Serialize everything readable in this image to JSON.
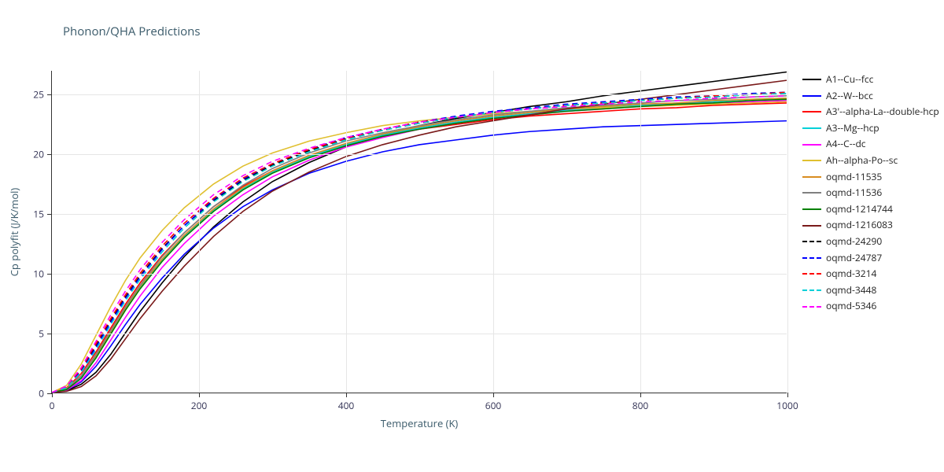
{
  "chart": {
    "type": "line",
    "title": "Phonon/QHA Predictions",
    "title_fontsize": 15,
    "background_color": "#ffffff",
    "grid_color": "#e6e6e6",
    "axis_color": "#333333",
    "label_fontsize": 13,
    "tick_fontsize": 12,
    "xlabel": "Temperature (K)",
    "ylabel": "Cp polyfit (J/K/mol)",
    "xlim": [
      0,
      1000
    ],
    "ylim": [
      0,
      27
    ],
    "xticks": [
      0,
      200,
      400,
      600,
      800,
      1000
    ],
    "yticks": [
      0,
      5,
      10,
      15,
      20,
      25
    ],
    "line_width": 1.6,
    "x_values": [
      0,
      20,
      40,
      60,
      80,
      100,
      120,
      150,
      180,
      220,
      260,
      300,
      350,
      400,
      450,
      500,
      550,
      600,
      650,
      700,
      750,
      800,
      850,
      900,
      950,
      1000
    ],
    "series": [
      {
        "name": "A1--Cu--fcc",
        "color": "#000000",
        "dash": "solid",
        "y": [
          0,
          0.15,
          0.7,
          1.7,
          3.2,
          5.0,
          6.8,
          9.2,
          11.4,
          13.9,
          16.0,
          17.7,
          19.3,
          20.6,
          21.6,
          22.4,
          23.0,
          23.5,
          24.0,
          24.4,
          24.9,
          25.3,
          25.7,
          26.1,
          26.5,
          26.9
        ]
      },
      {
        "name": "A2--W--bcc",
        "color": "#0000ff",
        "dash": "solid",
        "y": [
          0,
          0.2,
          0.9,
          2.2,
          3.9,
          5.7,
          7.4,
          9.6,
          11.6,
          13.8,
          15.6,
          17.0,
          18.4,
          19.4,
          20.2,
          20.8,
          21.2,
          21.6,
          21.9,
          22.1,
          22.3,
          22.4,
          22.5,
          22.6,
          22.7,
          22.8
        ]
      },
      {
        "name": "A3'--alpha-La--double-hcp",
        "color": "#ff0000",
        "dash": "solid",
        "y": [
          0,
          0.4,
          1.6,
          3.4,
          5.4,
          7.4,
          9.2,
          11.5,
          13.4,
          15.6,
          17.3,
          18.6,
          19.9,
          20.8,
          21.5,
          22.1,
          22.5,
          22.9,
          23.2,
          23.4,
          23.6,
          23.8,
          23.9,
          24.1,
          24.2,
          24.3
        ]
      },
      {
        "name": "A3--Mg--hcp",
        "color": "#00d0d8",
        "dash": "solid",
        "y": [
          0,
          0.3,
          1.3,
          3.0,
          5.0,
          7.0,
          8.8,
          11.1,
          13.1,
          15.3,
          17.1,
          18.5,
          19.8,
          20.8,
          21.6,
          22.2,
          22.7,
          23.1,
          23.4,
          23.7,
          23.9,
          24.1,
          24.3,
          24.4,
          24.6,
          24.7
        ]
      },
      {
        "name": "A4--C--dc",
        "color": "#ff00ff",
        "dash": "solid",
        "y": [
          0,
          0.2,
          1.0,
          2.5,
          4.4,
          6.3,
          8.1,
          10.5,
          12.5,
          14.8,
          16.6,
          18.1,
          19.5,
          20.6,
          21.4,
          22.1,
          22.6,
          23.0,
          23.3,
          23.6,
          23.8,
          24.0,
          24.2,
          24.3,
          24.4,
          24.5
        ]
      },
      {
        "name": "Ah--alpha-Po--sc",
        "color": "#e0c030",
        "dash": "solid",
        "y": [
          0,
          0.6,
          2.4,
          4.8,
          7.2,
          9.4,
          11.3,
          13.6,
          15.5,
          17.5,
          19.0,
          20.1,
          21.1,
          21.8,
          22.4,
          22.8,
          23.1,
          23.4,
          23.6,
          23.8,
          23.9,
          24.0,
          24.1,
          24.2,
          24.3,
          24.4
        ]
      },
      {
        "name": "oqmd-11535",
        "color": "#d88c20",
        "dash": "solid",
        "y": [
          0,
          0.35,
          1.4,
          3.1,
          5.1,
          7.1,
          8.9,
          11.2,
          13.2,
          15.4,
          17.2,
          18.6,
          19.9,
          20.9,
          21.7,
          22.3,
          22.8,
          23.2,
          23.5,
          23.8,
          24.0,
          24.2,
          24.3,
          24.5,
          24.6,
          24.7
        ]
      },
      {
        "name": "oqmd-11536",
        "color": "#808080",
        "dash": "solid",
        "y": [
          0,
          0.3,
          1.4,
          3.2,
          5.2,
          7.2,
          9.0,
          11.4,
          13.4,
          15.6,
          17.4,
          18.8,
          20.1,
          21.1,
          21.8,
          22.4,
          22.9,
          23.3,
          23.6,
          23.9,
          24.1,
          24.3,
          24.5,
          24.6,
          24.8,
          24.9
        ]
      },
      {
        "name": "oqmd-1214744",
        "color": "#008000",
        "dash": "solid",
        "y": [
          0,
          0.25,
          1.2,
          2.9,
          4.9,
          6.9,
          8.7,
          11.0,
          13.0,
          15.2,
          17.0,
          18.4,
          19.7,
          20.7,
          21.5,
          22.1,
          22.6,
          23.0,
          23.3,
          23.6,
          23.8,
          24.0,
          24.2,
          24.3,
          24.5,
          24.6
        ]
      },
      {
        "name": "oqmd-1216083",
        "color": "#7a1a1a",
        "dash": "solid",
        "y": [
          0,
          0.1,
          0.5,
          1.4,
          2.8,
          4.5,
          6.2,
          8.5,
          10.6,
          13.1,
          15.2,
          16.9,
          18.5,
          19.8,
          20.8,
          21.6,
          22.3,
          22.8,
          23.3,
          23.8,
          24.2,
          24.6,
          25.0,
          25.4,
          25.8,
          26.2
        ]
      },
      {
        "name": "oqmd-24290",
        "color": "#000000",
        "dash": "dashed",
        "y": [
          0,
          0.5,
          1.9,
          3.9,
          6.0,
          8.0,
          9.8,
          12.1,
          14.0,
          16.1,
          17.8,
          19.1,
          20.3,
          21.3,
          22.0,
          22.6,
          23.1,
          23.5,
          23.8,
          24.1,
          24.3,
          24.5,
          24.7,
          24.8,
          25.0,
          25.1
        ]
      },
      {
        "name": "oqmd-24787",
        "color": "#0000ff",
        "dash": "dashed",
        "y": [
          0,
          0.45,
          1.8,
          3.8,
          5.9,
          7.9,
          9.7,
          12.0,
          14.0,
          16.2,
          17.9,
          19.2,
          20.4,
          21.4,
          22.1,
          22.7,
          23.2,
          23.6,
          23.9,
          24.2,
          24.4,
          24.6,
          24.8,
          24.9,
          25.1,
          25.2
        ]
      },
      {
        "name": "oqmd-3214",
        "color": "#ff0000",
        "dash": "dashed",
        "y": [
          0,
          0.5,
          2.0,
          4.1,
          6.2,
          8.2,
          10.0,
          12.3,
          14.2,
          16.3,
          18.0,
          19.2,
          20.4,
          21.3,
          22.1,
          22.7,
          23.1,
          23.5,
          23.8,
          24.1,
          24.3,
          24.5,
          24.7,
          24.9,
          25.0,
          25.2
        ]
      },
      {
        "name": "oqmd-3448",
        "color": "#00d0d8",
        "dash": "dashed",
        "y": [
          0,
          0.4,
          1.7,
          3.6,
          5.7,
          7.7,
          9.5,
          11.8,
          13.8,
          16.0,
          17.7,
          19.0,
          20.2,
          21.2,
          22.0,
          22.6,
          23.1,
          23.5,
          23.8,
          24.1,
          24.3,
          24.5,
          24.7,
          24.8,
          25.0,
          25.1
        ]
      },
      {
        "name": "oqmd-5346",
        "color": "#ff00ff",
        "dash": "dashed",
        "y": [
          0,
          0.55,
          2.1,
          4.3,
          6.5,
          8.5,
          10.3,
          12.6,
          14.5,
          16.6,
          18.2,
          19.4,
          20.5,
          21.4,
          22.1,
          22.7,
          23.1,
          23.5,
          23.8,
          24.0,
          24.2,
          24.4,
          24.5,
          24.7,
          24.8,
          24.9
        ]
      }
    ]
  }
}
